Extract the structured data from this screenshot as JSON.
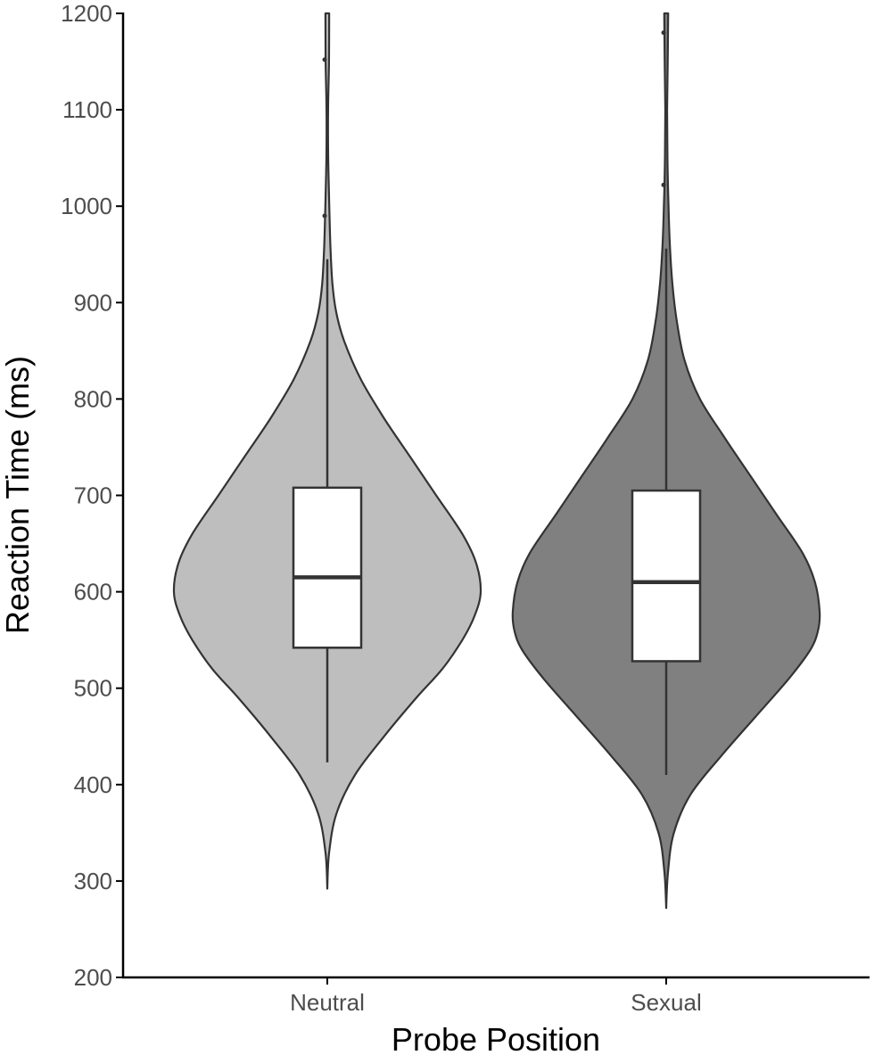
{
  "chart_data": {
    "type": "violin",
    "xlabel": "Probe Position",
    "ylabel": "Reaction Time (ms)",
    "ylim": [
      200,
      1200
    ],
    "yticks": [
      200,
      300,
      400,
      500,
      600,
      700,
      800,
      900,
      1000,
      1100,
      1200
    ],
    "grid": false,
    "legend": "none",
    "categories": [
      "Neutral",
      "Sexual"
    ],
    "series": [
      {
        "category": "Neutral",
        "fill": "#bebebe",
        "box": {
          "min": 423,
          "q1": 542,
          "median": 615,
          "q3": 708,
          "max": 945
        },
        "outliers": [
          990,
          1152
        ],
        "range": [
          292,
          1200
        ],
        "density": [
          [
            292,
            0.0
          ],
          [
            330,
            0.012
          ],
          [
            370,
            0.06
          ],
          [
            410,
            0.18
          ],
          [
            450,
            0.37
          ],
          [
            490,
            0.58
          ],
          [
            520,
            0.75
          ],
          [
            550,
            0.88
          ],
          [
            575,
            0.96
          ],
          [
            600,
            1.0
          ],
          [
            630,
            0.97
          ],
          [
            660,
            0.88
          ],
          [
            700,
            0.71
          ],
          [
            740,
            0.54
          ],
          [
            780,
            0.37
          ],
          [
            820,
            0.22
          ],
          [
            860,
            0.11
          ],
          [
            890,
            0.058
          ],
          [
            920,
            0.033
          ],
          [
            960,
            0.02
          ],
          [
            1000,
            0.013
          ],
          [
            1050,
            0.006
          ],
          [
            1100,
            0.005
          ],
          [
            1150,
            0.011
          ],
          [
            1200,
            0.012
          ]
        ]
      },
      {
        "category": "Sexual",
        "fill": "#808080",
        "box": {
          "min": 410,
          "q1": 528,
          "median": 610,
          "q3": 705,
          "max": 956
        },
        "outliers": [
          1022,
          1180
        ],
        "range": [
          272,
          1200
        ],
        "density": [
          [
            272,
            0.0
          ],
          [
            310,
            0.012
          ],
          [
            350,
            0.05
          ],
          [
            390,
            0.16
          ],
          [
            430,
            0.36
          ],
          [
            470,
            0.58
          ],
          [
            510,
            0.8
          ],
          [
            540,
            0.94
          ],
          [
            560,
            0.99
          ],
          [
            580,
            1.0
          ],
          [
            610,
            0.97
          ],
          [
            640,
            0.89
          ],
          [
            680,
            0.72
          ],
          [
            720,
            0.55
          ],
          [
            760,
            0.38
          ],
          [
            800,
            0.22
          ],
          [
            840,
            0.12
          ],
          [
            880,
            0.07
          ],
          [
            920,
            0.04
          ],
          [
            960,
            0.024
          ],
          [
            1000,
            0.015
          ],
          [
            1050,
            0.008
          ],
          [
            1100,
            0.006
          ],
          [
            1150,
            0.01
          ],
          [
            1200,
            0.013
          ]
        ]
      }
    ]
  }
}
